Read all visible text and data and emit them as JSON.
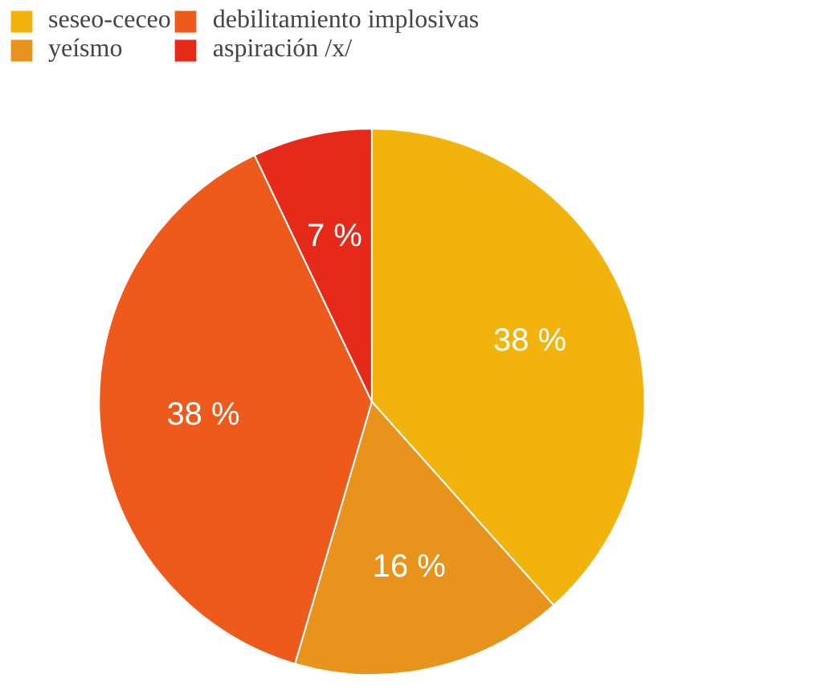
{
  "chart_data": {
    "type": "pie",
    "categories": [
      "seseo-ceceo",
      "yeísmo",
      "debilitamiento implosivas",
      "aspiración /x/"
    ],
    "values": [
      38,
      16,
      38,
      7
    ],
    "colors": [
      "#f2b40c",
      "#e8941c",
      "#ee5a1c",
      "#e62a1a"
    ],
    "value_labels": [
      "38 %",
      "16 %",
      "38 %",
      "7 %"
    ],
    "legend": "top"
  }
}
